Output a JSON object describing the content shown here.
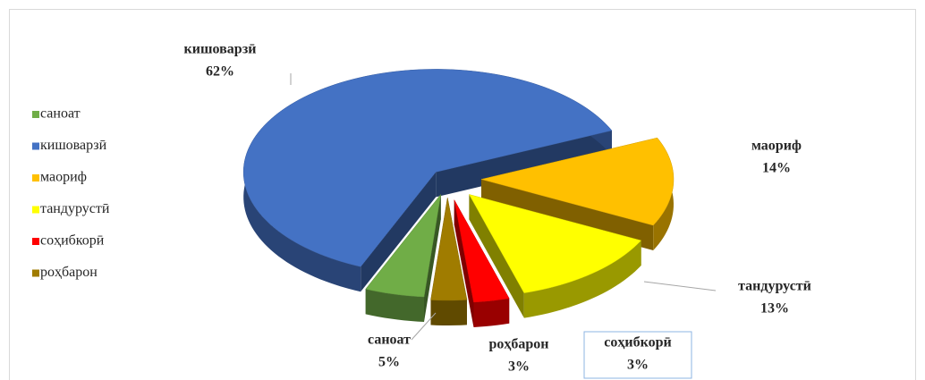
{
  "chart_data": {
    "type": "pie",
    "categories": [
      "саноат",
      "кишоварзӣ",
      "маориф",
      "тандурустӣ",
      "соҳибкорӣ",
      "роҳбарон"
    ],
    "values": [
      5,
      62,
      14,
      13,
      3,
      3
    ],
    "value_labels": [
      "5%",
      "62%",
      "14%",
      "13%",
      "3%",
      "3%"
    ],
    "colors": [
      "#70ad47",
      "#4472c4",
      "#ffc000",
      "#ffff00",
      "#ff0000",
      "#a07c00"
    ],
    "legend": "left"
  }
}
